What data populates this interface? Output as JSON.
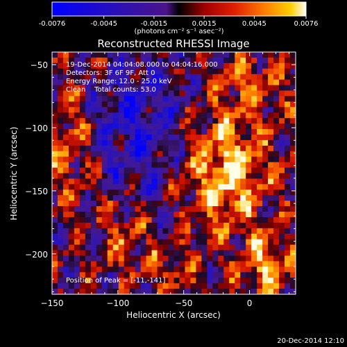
{
  "colorbar": {
    "tick_labels": [
      "-0.0076",
      "-0.0045",
      "-0.0015",
      "0.0015",
      "0.0045",
      "0.0076"
    ],
    "units_label": "(photons cm⁻² s⁻¹ asec⁻²)",
    "min": -0.0076,
    "max": 0.0076
  },
  "chart_data": {
    "type": "heatmap",
    "title": "Reconstructed RHESSI Image",
    "xlabel": "Heliocentric X (arcsec)",
    "ylabel": "Heliocentric Y (arcsec)",
    "xlim": [
      -150,
      35
    ],
    "ylim": [
      -232,
      -40
    ],
    "x_ticks": [
      -150,
      -100,
      -50,
      0
    ],
    "y_ticks": [
      -50,
      -100,
      -150,
      -200
    ],
    "x_tick_labels": [
      "−150",
      "−100",
      "−50",
      "0"
    ],
    "y_tick_labels": [
      "−50",
      "−100",
      "−150",
      "−200"
    ],
    "peak_position": [
      -11,
      -141
    ],
    "annotations": {
      "time_range": "19-Dec-2014 04:04:08.000 to 04:04:16.000",
      "detectors": "Detectors: 3F 6F 9F, Att 0",
      "energy_range": "Energy Range: 12.0 - 25.0 keV",
      "clean_counts": "Clean    Total counts: 53.0",
      "peak_label": "Position of Peak = [-11,-141]"
    }
  },
  "footer": {
    "timestamp": "20-Dec-2014 12:10"
  }
}
